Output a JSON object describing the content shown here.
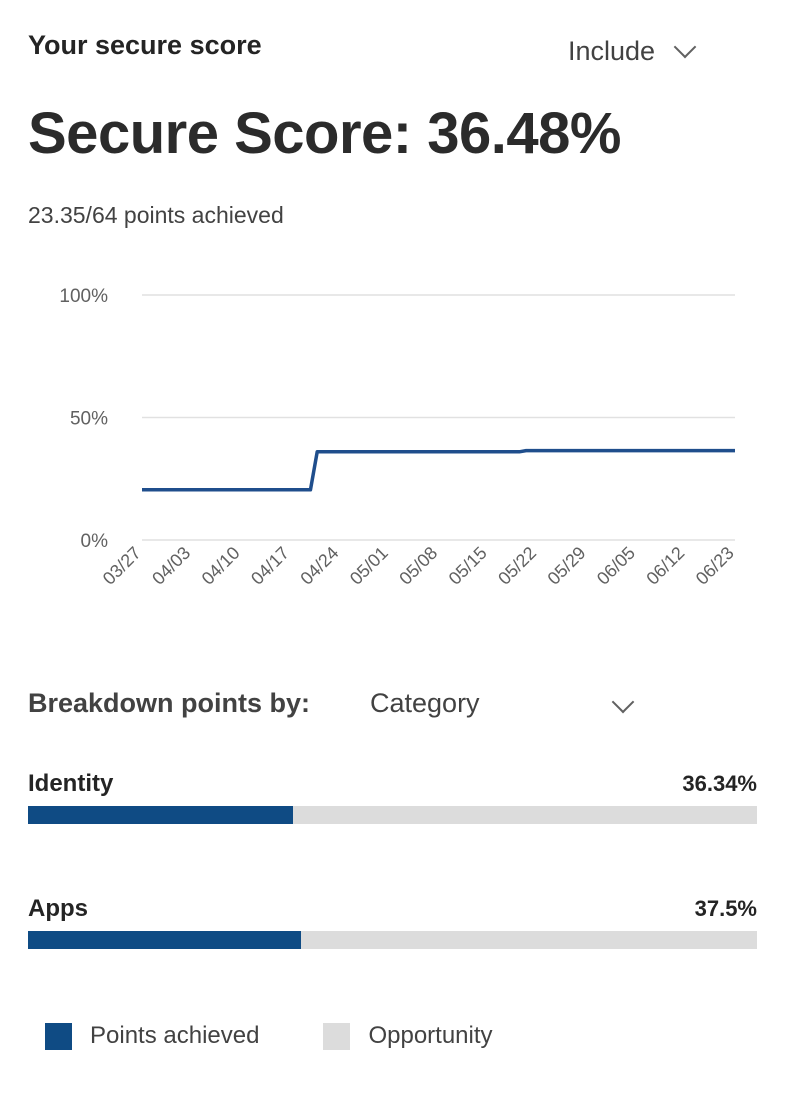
{
  "header": {
    "title": "Your secure score",
    "include_dropdown": {
      "label": "Include",
      "icon": "chevron-down-icon"
    }
  },
  "score": {
    "heading": "Secure Score: 36.48%",
    "points_text": "23.35/64 points achieved"
  },
  "chart_data": {
    "type": "line",
    "title": "",
    "xlabel": "",
    "ylabel": "",
    "ylim": [
      0,
      100
    ],
    "y_ticks": [
      "0%",
      "50%",
      "100%"
    ],
    "y_tick_values": [
      0,
      50,
      100
    ],
    "grid": true,
    "x_tick_labels": [
      "03/27",
      "04/03",
      "04/10",
      "04/17",
      "04/24",
      "05/01",
      "05/08",
      "05/15",
      "05/22",
      "05/29",
      "06/05",
      "06/12",
      "06/23"
    ],
    "x_domain": [
      "03/27",
      "06/23"
    ],
    "color": "#1f4e8c",
    "series": [
      {
        "x": [
          "03/27",
          "04/21",
          "04/22",
          "05/22",
          "05/23",
          "06/23"
        ],
        "values": [
          20.5,
          20.5,
          36.0,
          36.0,
          36.48,
          36.48
        ]
      }
    ]
  },
  "breakdown": {
    "label": "Breakdown points by:",
    "selected": "Category",
    "icon": "chevron-down-icon",
    "categories": [
      {
        "name": "Identity",
        "percent_label": "36.34%",
        "percent": 36.34
      },
      {
        "name": "Apps",
        "percent_label": "37.5%",
        "percent": 37.5
      }
    ]
  },
  "legend": {
    "items": [
      {
        "label": "Points achieved",
        "color": "#0f4b84"
      },
      {
        "label": "Opportunity",
        "color": "#dcdcdc"
      }
    ]
  },
  "colors": {
    "accent": "#0f4b84",
    "track": "#dcdcdc",
    "grid": "#e1e1e1"
  }
}
